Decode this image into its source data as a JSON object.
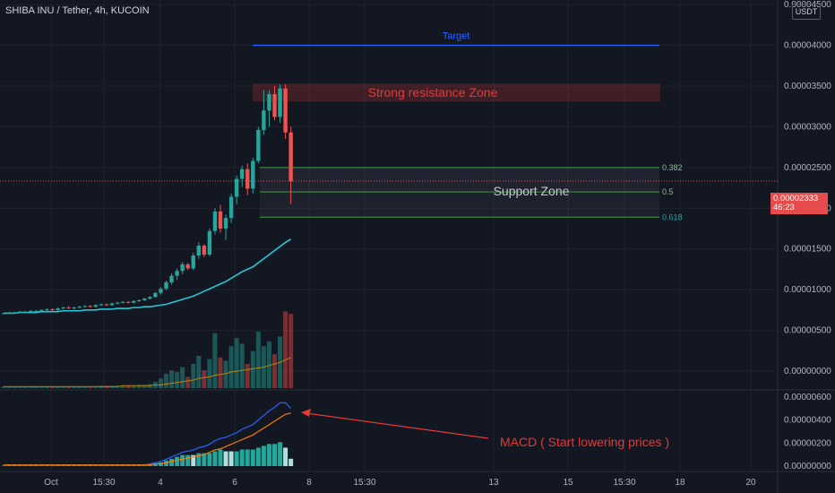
{
  "header": {
    "title": "SHIBA INU / Tether, 4h, KUCOIN"
  },
  "price_axis": {
    "unit": "USDT",
    "ticks": [
      "0.00004500",
      "0.00004000",
      "0.00003500",
      "0.00003000",
      "0.00002500",
      "0.00002000",
      "0.00001500",
      "0.00001000",
      "0.00000500",
      "0.00000000"
    ],
    "current_price": "0.00002333",
    "countdown": "46:23"
  },
  "macd_axis": {
    "ticks": [
      "0.00000600",
      "0.00000400",
      "0.00000200",
      "0.00000000"
    ]
  },
  "time_axis": {
    "ticks": [
      "Oct",
      "15:30",
      "4",
      "6",
      "8",
      "15:30",
      "13",
      "15",
      "15:30",
      "18",
      "20"
    ]
  },
  "annotations": {
    "target": "Target",
    "resistance": "Strong resistance Zone",
    "support": "Support Zone",
    "macd_note": "MACD ( Start lowering prices )",
    "fib_levels": [
      "0.382",
      "0.5",
      "0.618"
    ]
  },
  "colors": {
    "up": "#26a69a",
    "down": "#ef5350",
    "ma": "#26c6da",
    "macd": "#2962ff",
    "signal": "#f57c00",
    "target": "#2962ff",
    "resistance": "#e53935",
    "fib": "#4caf50"
  },
  "chart_data": {
    "type": "candlestick",
    "title": "SHIBA INU / Tether, 4h, KUCOIN",
    "price_levels": {
      "target": 4e-05,
      "resistance_low": 3.31e-05,
      "resistance_high": 3.53e-05,
      "fib_382": 2.5e-05,
      "fib_5": 2.2e-05,
      "fib_618": 1.89e-05,
      "current": 2.333e-05
    },
    "price_range": [
      0,
      4.6e-05
    ],
    "candles": [
      [
        7.1e-06,
        7.2e-06,
        7e-06,
        7.1e-06
      ],
      [
        7.1e-06,
        7.3e-06,
        7e-06,
        7.2e-06
      ],
      [
        7.2e-06,
        7.3e-06,
        7.1e-06,
        7.2e-06
      ],
      [
        7.2e-06,
        7.4e-06,
        7.1e-06,
        7.3e-06
      ],
      [
        7.3e-06,
        7.4e-06,
        7.2e-06,
        7.3e-06
      ],
      [
        7.3e-06,
        7.5e-06,
        7.2e-06,
        7.4e-06
      ],
      [
        7.4e-06,
        7.5e-06,
        7.3e-06,
        7.4e-06
      ],
      [
        7.4e-06,
        7.6e-06,
        7.3e-06,
        7.5e-06
      ],
      [
        7.5e-06,
        7.7e-06,
        7.4e-06,
        7.6e-06
      ],
      [
        7.6e-06,
        7.7e-06,
        7.4e-06,
        7.5e-06
      ],
      [
        7.5e-06,
        7.8e-06,
        7.4e-06,
        7.7e-06
      ],
      [
        7.7e-06,
        7.9e-06,
        7.6e-06,
        7.8e-06
      ],
      [
        7.8e-06,
        8e-06,
        7.6e-06,
        7.7e-06
      ],
      [
        7.7e-06,
        7.9e-06,
        7.6e-06,
        7.8e-06
      ],
      [
        7.8e-06,
        8e-06,
        7.7e-06,
        7.9e-06
      ],
      [
        7.9e-06,
        8.1e-06,
        7.8e-06,
        8e-06
      ],
      [
        8e-06,
        8.1e-06,
        7.8e-06,
        7.9e-06
      ],
      [
        7.9e-06,
        8.2e-06,
        7.8e-06,
        8.1e-06
      ],
      [
        8.1e-06,
        8.3e-06,
        8e-06,
        8.2e-06
      ],
      [
        8.2e-06,
        8.3e-06,
        8e-06,
        8.1e-06
      ],
      [
        8.1e-06,
        8.4e-06,
        8e-06,
        8.3e-06
      ],
      [
        8.3e-06,
        8.5e-06,
        8.2e-06,
        8.4e-06
      ],
      [
        8.4e-06,
        8.6e-06,
        8.3e-06,
        8.5e-06
      ],
      [
        8.5e-06,
        8.6e-06,
        8.3e-06,
        8.4e-06
      ],
      [
        8.4e-06,
        8.7e-06,
        8.3e-06,
        8.6e-06
      ],
      [
        8.6e-06,
        8.8e-06,
        8.5e-06,
        8.7e-06
      ],
      [
        8.7e-06,
        9e-06,
        8.6e-06,
        8.9e-06
      ],
      [
        8.9e-06,
        9.2e-06,
        8.8e-06,
        9.1e-06
      ],
      [
        9.1e-06,
        9.7e-06,
        9e-06,
        9.6e-06
      ],
      [
        9.6e-06,
        1.03e-05,
        9.4e-06,
        1.01e-05
      ],
      [
        1.01e-05,
        1.11e-05,
        9.9e-06,
        1.09e-05
      ],
      [
        1.09e-05,
        1.2e-05,
        1.06e-05,
        1.17e-05
      ],
      [
        1.17e-05,
        1.26e-05,
        1.12e-05,
        1.23e-05
      ],
      [
        1.23e-05,
        1.34e-05,
        1.19e-05,
        1.31e-05
      ],
      [
        1.31e-05,
        1.33e-05,
        1.24e-05,
        1.26e-05
      ],
      [
        1.26e-05,
        1.45e-05,
        1.24e-05,
        1.42e-05
      ],
      [
        1.42e-05,
        1.58e-05,
        1.38e-05,
        1.54e-05
      ],
      [
        1.54e-05,
        1.56e-05,
        1.4e-05,
        1.43e-05
      ],
      [
        1.43e-05,
        1.75e-05,
        1.41e-05,
        1.72e-05
      ],
      [
        1.72e-05,
        2e-05,
        1.68e-05,
        1.96e-05
      ],
      [
        1.96e-05,
        2.04e-05,
        1.7e-05,
        1.75e-05
      ],
      [
        1.75e-05,
        1.92e-05,
        1.61e-05,
        1.88e-05
      ],
      [
        1.88e-05,
        2.18e-05,
        1.82e-05,
        2.14e-05
      ],
      [
        2.14e-05,
        2.4e-05,
        2.05e-05,
        2.36e-05
      ],
      [
        2.36e-05,
        2.52e-05,
        2.26e-05,
        2.48e-05
      ],
      [
        2.48e-05,
        2.55e-05,
        2.16e-05,
        2.24e-05
      ],
      [
        2.24e-05,
        2.62e-05,
        2.18e-05,
        2.58e-05
      ],
      [
        2.58e-05,
        3e-05,
        2.55e-05,
        2.96e-05
      ],
      [
        2.96e-05,
        3.45e-05,
        2.9e-05,
        3.2e-05
      ],
      [
        3.2e-05,
        3.45e-05,
        3e-05,
        3.4e-05
      ],
      [
        3.4e-05,
        3.5e-05,
        3.08e-05,
        3.12e-05
      ],
      [
        3.12e-05,
        3.52e-05,
        3.05e-05,
        3.47e-05
      ],
      [
        3.47e-05,
        3.52e-05,
        2.85e-05,
        2.93e-05
      ],
      [
        2.93e-05,
        3e-05,
        2.05e-05,
        2.33e-05
      ]
    ],
    "ma": [
      7.1e-06,
      7.1e-06,
      7.1e-06,
      7.2e-06,
      7.2e-06,
      7.2e-06,
      7.2e-06,
      7.3e-06,
      7.3e-06,
      7.3e-06,
      7.3e-06,
      7.4e-06,
      7.4e-06,
      7.4e-06,
      7.4e-06,
      7.5e-06,
      7.5e-06,
      7.5e-06,
      7.6e-06,
      7.6e-06,
      7.6e-06,
      7.7e-06,
      7.7e-06,
      7.7e-06,
      7.8e-06,
      7.8e-06,
      7.9e-06,
      7.9e-06,
      8e-06,
      8.1e-06,
      8.2e-06,
      8.4e-06,
      8.6e-06,
      8.8e-06,
      9e-06,
      9.2e-06,
      9.5e-06,
      9.8e-06,
      1.01e-05,
      1.04e-05,
      1.07e-05,
      1.1e-05,
      1.14e-05,
      1.18e-05,
      1.22e-05,
      1.25e-05,
      1.28e-05,
      1.33e-05,
      1.38e-05,
      1.43e-05,
      1.48e-05,
      1.53e-05,
      1.58e-05,
      1.62e-05
    ],
    "volume_range": [
      0,
      1
    ],
    "volume": [
      0.02,
      0.02,
      0.02,
      0.02,
      0.02,
      0.02,
      0.02,
      0.02,
      0.02,
      0.02,
      0.02,
      0.02,
      0.02,
      0.02,
      0.02,
      0.02,
      0.02,
      0.02,
      0.03,
      0.03,
      0.03,
      0.03,
      0.03,
      0.03,
      0.03,
      0.04,
      0.04,
      0.05,
      0.08,
      0.12,
      0.18,
      0.22,
      0.2,
      0.26,
      0.14,
      0.3,
      0.4,
      0.22,
      0.36,
      0.68,
      0.38,
      0.34,
      0.52,
      0.62,
      0.55,
      0.3,
      0.46,
      0.7,
      0.52,
      0.58,
      0.42,
      0.64,
      0.95,
      0.92
    ],
    "volume_ma": [
      0.02,
      0.02,
      0.02,
      0.02,
      0.02,
      0.02,
      0.02,
      0.02,
      0.02,
      0.02,
      0.02,
      0.02,
      0.02,
      0.02,
      0.02,
      0.02,
      0.02,
      0.02,
      0.02,
      0.02,
      0.02,
      0.02,
      0.03,
      0.03,
      0.03,
      0.03,
      0.03,
      0.03,
      0.04,
      0.04,
      0.05,
      0.06,
      0.07,
      0.08,
      0.09,
      0.1,
      0.12,
      0.13,
      0.14,
      0.16,
      0.17,
      0.18,
      0.2,
      0.21,
      0.22,
      0.23,
      0.24,
      0.25,
      0.26,
      0.28,
      0.3,
      0.32,
      0.35,
      0.38
    ],
    "macd_range": [
      0,
      6.3e-06
    ],
    "macd": [
      1e-07,
      1e-07,
      1e-07,
      1e-07,
      1e-07,
      1e-07,
      1e-07,
      1e-07,
      1e-07,
      1e-07,
      1e-07,
      1e-07,
      1e-07,
      1e-07,
      1e-07,
      1e-07,
      1e-07,
      1e-07,
      1e-07,
      1e-07,
      1e-07,
      1e-07,
      1e-07,
      1e-07,
      1e-07,
      1e-07,
      1e-07,
      2e-07,
      3e-07,
      4e-07,
      6e-07,
      8e-07,
      1e-06,
      1.2e-06,
      1.3e-06,
      1.4e-06,
      1.6e-06,
      1.7e-06,
      1.9e-06,
      2.2e-06,
      2.4e-06,
      2.5e-06,
      2.7e-06,
      2.9e-06,
      3.2e-06,
      3.4e-06,
      3.6e-06,
      4e-06,
      4.4e-06,
      4.8e-06,
      5.1e-06,
      5.5e-06,
      5.5e-06,
      5e-06
    ],
    "signal": [
      1e-07,
      1e-07,
      1e-07,
      1e-07,
      1e-07,
      1e-07,
      1e-07,
      1e-07,
      1e-07,
      1e-07,
      1e-07,
      1e-07,
      1e-07,
      1e-07,
      1e-07,
      1e-07,
      1e-07,
      1e-07,
      1e-07,
      1e-07,
      1e-07,
      1e-07,
      1e-07,
      1e-07,
      1e-07,
      1e-07,
      1e-07,
      1e-07,
      2e-07,
      2e-07,
      3e-07,
      4e-07,
      5e-07,
      6e-07,
      7e-07,
      8e-07,
      9e-07,
      1e-06,
      1.2e-06,
      1.4e-06,
      1.5e-06,
      1.7e-06,
      1.9e-06,
      2.1e-06,
      2.3e-06,
      2.5e-06,
      2.7e-06,
      3e-06,
      3.3e-06,
      3.6e-06,
      3.9e-06,
      4.2e-06,
      4.5e-06,
      4.6e-06
    ]
  }
}
